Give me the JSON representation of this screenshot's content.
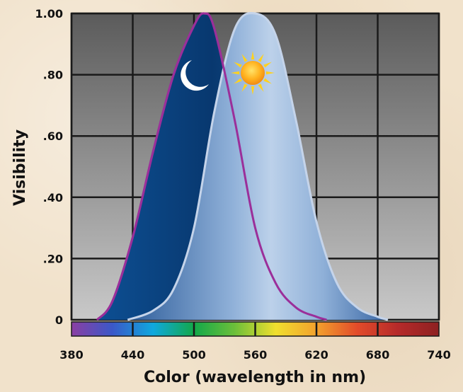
{
  "chart_data": {
    "type": "area",
    "title": "",
    "xlabel": "Color (wavelength in nm)",
    "ylabel": "Visibility",
    "xlim": [
      380,
      740
    ],
    "ylim": [
      0,
      1.0
    ],
    "x_ticks": [
      380,
      440,
      500,
      560,
      620,
      680,
      740
    ],
    "x_tick_labels": [
      "380",
      "440",
      "500",
      "560",
      "620",
      "680",
      "740"
    ],
    "y_ticks": [
      0,
      0.2,
      0.4,
      0.6,
      0.8,
      1.0
    ],
    "y_tick_labels": [
      "0",
      ".20",
      ".40",
      ".60",
      ".80",
      "1.00"
    ],
    "grid": true,
    "series": [
      {
        "x": [
          405,
          420,
          440,
          460,
          480,
          500,
          510,
          520,
          540,
          560,
          580,
          600,
          620,
          630
        ],
        "y": [
          0.0,
          0.06,
          0.27,
          0.55,
          0.8,
          0.96,
          1.0,
          0.95,
          0.65,
          0.3,
          0.12,
          0.04,
          0.01,
          0.0
        ],
        "color": "#0a3d7a",
        "stroke": "#9b2f9a",
        "icon": "moon-icon"
      },
      {
        "x": [
          435,
          460,
          480,
          500,
          520,
          540,
          560,
          580,
          600,
          620,
          640,
          660,
          680,
          690
        ],
        "y": [
          0.0,
          0.03,
          0.1,
          0.3,
          0.68,
          0.95,
          1.0,
          0.93,
          0.65,
          0.32,
          0.12,
          0.04,
          0.01,
          0.0
        ],
        "color": "#9cb5d9",
        "stroke": "#c5d4ea",
        "icon": "sun-icon"
      }
    ],
    "spectrum_colors": [
      "#8b3fa3",
      "#3b58c8",
      "#10a8de",
      "#12a84a",
      "#6cbf3a",
      "#f0df2e",
      "#f2a12d",
      "#e24b2a",
      "#b52a2a",
      "#8e2121"
    ]
  }
}
